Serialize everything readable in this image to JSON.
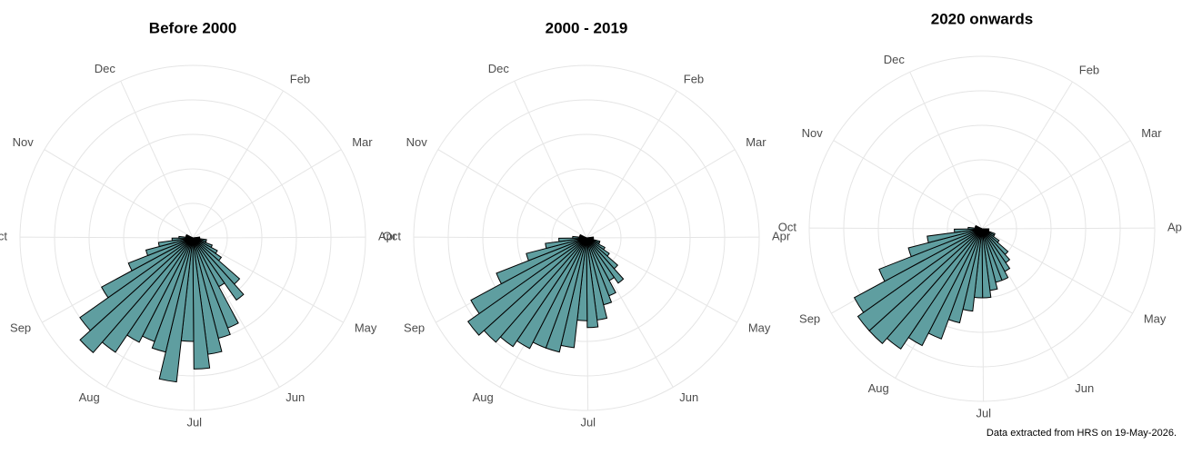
{
  "chart_data": [
    {
      "type": "polar-histogram",
      "title": "Before 2000",
      "color": "#5f9ea0",
      "bins": [
        84,
        91,
        98,
        105,
        112,
        119,
        126,
        133,
        140,
        147,
        154,
        161,
        168,
        175,
        182,
        189,
        196,
        203,
        210,
        217,
        224,
        231,
        238,
        245,
        252,
        259,
        266,
        273,
        280,
        287,
        294,
        301
      ],
      "values": [
        1,
        1,
        2,
        2,
        3,
        4,
        5,
        9,
        11,
        8,
        14,
        15,
        17,
        19,
        15,
        21,
        17,
        16,
        17,
        20,
        22,
        20,
        15,
        10,
        7,
        5,
        3,
        2,
        1,
        1,
        1
      ],
      "xlim": [
        0,
        365
      ],
      "xticks": [
        {
          "value": 32,
          "label": "Feb"
        },
        {
          "value": 60,
          "label": "Mar"
        },
        {
          "value": 91,
          "label": "Apr"
        },
        {
          "value": 121,
          "label": "May"
        },
        {
          "value": 152,
          "label": "Jun"
        },
        {
          "value": 182,
          "label": "Jul"
        },
        {
          "value": 213,
          "label": "Aug"
        },
        {
          "value": 244,
          "label": "Sep"
        },
        {
          "value": 274,
          "label": "Oct"
        },
        {
          "value": 305,
          "label": "Nov"
        },
        {
          "value": 340,
          "label": "Dec"
        }
      ],
      "ylim": [
        0,
        25
      ],
      "yticks": [
        5,
        10,
        15,
        20,
        25
      ],
      "grid": true
    },
    {
      "type": "polar-histogram",
      "title": "2000 - 2019",
      "color": "#5f9ea0",
      "bins": [
        84,
        91,
        98,
        105,
        112,
        119,
        126,
        133,
        140,
        147,
        154,
        161,
        168,
        175,
        182,
        189,
        196,
        203,
        210,
        217,
        224,
        231,
        238,
        245,
        252,
        259,
        266,
        273,
        280,
        287,
        294,
        301
      ],
      "values": [
        1,
        1,
        1,
        2,
        2,
        3,
        4,
        6,
        8,
        7,
        9,
        10,
        12,
        13,
        12,
        16,
        17,
        17,
        18,
        19,
        20,
        21,
        19,
        14,
        9,
        6,
        4,
        2,
        1,
        1,
        1
      ],
      "xlim": [
        0,
        365
      ],
      "xticks": [
        {
          "value": 32,
          "label": "Feb"
        },
        {
          "value": 60,
          "label": "Mar"
        },
        {
          "value": 91,
          "label": "Apr"
        },
        {
          "value": 121,
          "label": "May"
        },
        {
          "value": 152,
          "label": "Jun"
        },
        {
          "value": 182,
          "label": "Jul"
        },
        {
          "value": 213,
          "label": "Aug"
        },
        {
          "value": 244,
          "label": "Sep"
        },
        {
          "value": 274,
          "label": "Oct"
        },
        {
          "value": 305,
          "label": "Nov"
        },
        {
          "value": 340,
          "label": "Dec"
        }
      ],
      "ylim": [
        0,
        25
      ],
      "yticks": [
        5,
        10,
        15,
        20,
        25
      ],
      "grid": true
    },
    {
      "type": "polar-histogram",
      "title": "2020 onwards",
      "color": "#5f9ea0",
      "bins": [
        84,
        91,
        98,
        105,
        112,
        119,
        126,
        133,
        140,
        147,
        154,
        161,
        168,
        175,
        182,
        189,
        196,
        203,
        210,
        217,
        224,
        231,
        238,
        245,
        252,
        259,
        266,
        273,
        280,
        287,
        294,
        301
      ],
      "values": [
        0,
        1,
        1,
        1,
        2,
        2,
        3,
        5,
        6,
        7,
        8,
        8,
        9,
        10,
        10,
        12,
        14,
        17,
        19,
        21,
        22,
        22,
        21,
        16,
        11,
        8,
        4,
        2,
        1,
        1,
        1
      ],
      "xlim": [
        0,
        365
      ],
      "xticks": [
        {
          "value": 32,
          "label": "Feb"
        },
        {
          "value": 60,
          "label": "Mar"
        },
        {
          "value": 91,
          "label": "Apr"
        },
        {
          "value": 121,
          "label": "May"
        },
        {
          "value": 152,
          "label": "Jun"
        },
        {
          "value": 182,
          "label": "Jul"
        },
        {
          "value": 213,
          "label": "Aug"
        },
        {
          "value": 244,
          "label": "Sep"
        },
        {
          "value": 274,
          "label": "Oct"
        },
        {
          "value": 305,
          "label": "Nov"
        },
        {
          "value": 340,
          "label": "Dec"
        }
      ],
      "ylim": [
        0,
        25
      ],
      "yticks": [
        5,
        10,
        15,
        20,
        25
      ],
      "grid": true
    }
  ],
  "caption": "Data extracted from HRS on 19-May-2026."
}
